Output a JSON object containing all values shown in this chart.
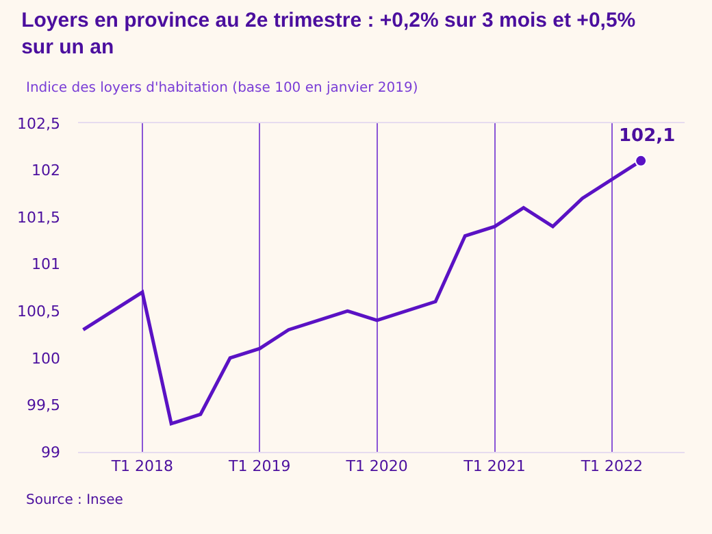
{
  "chart_data": {
    "type": "line",
    "title": "Loyers en province au 2e trimestre : +0,2% sur 3 mois et +0,5% sur un an",
    "subtitle": "Indice des loyers d'habitation (base 100 en janvier 2019)",
    "x": [
      "2017-07",
      "2018-01",
      "2018-04",
      "2018-07",
      "2018-10",
      "2019-01",
      "2019-04",
      "2019-10",
      "2020-01",
      "2020-07",
      "2020-10",
      "2021-01",
      "2021-04",
      "2021-07",
      "2021-10",
      "2022-04"
    ],
    "series": [
      {
        "color": "#5a12c4",
        "values": [
          100.3,
          100.7,
          99.3,
          99.4,
          100.0,
          100.1,
          100.3,
          100.5,
          100.4,
          100.6,
          101.3,
          101.4,
          101.6,
          101.4,
          101.7,
          102.1
        ]
      }
    ],
    "xlim": [
      "2017-06-15",
      "2022-08-15"
    ],
    "xticks": [
      {
        "value": "2018-01",
        "label": "T1 2018"
      },
      {
        "value": "2019-01",
        "label": "T1 2019"
      },
      {
        "value": "2020-01",
        "label": "T1 2020"
      },
      {
        "value": "2021-01",
        "label": "T1 2021"
      },
      {
        "value": "2022-01",
        "label": "T1 2022"
      }
    ],
    "ylim": [
      99,
      102.5
    ],
    "yticks": [
      {
        "value": 99,
        "label": "99"
      },
      {
        "value": 99.5,
        "label": "99,5"
      },
      {
        "value": 100,
        "label": "100"
      },
      {
        "value": 100.5,
        "label": "100,5"
      },
      {
        "value": 101,
        "label": "101"
      },
      {
        "value": 101.5,
        "label": "101,5"
      },
      {
        "value": 102,
        "label": "102"
      },
      {
        "value": 102.5,
        "label": "102,5"
      }
    ],
    "grid": "x",
    "line_style": "solid",
    "annotations": [
      {
        "text": "102,1",
        "x": "2022-04",
        "y": 102.1
      },
      "Source : Insee"
    ]
  }
}
